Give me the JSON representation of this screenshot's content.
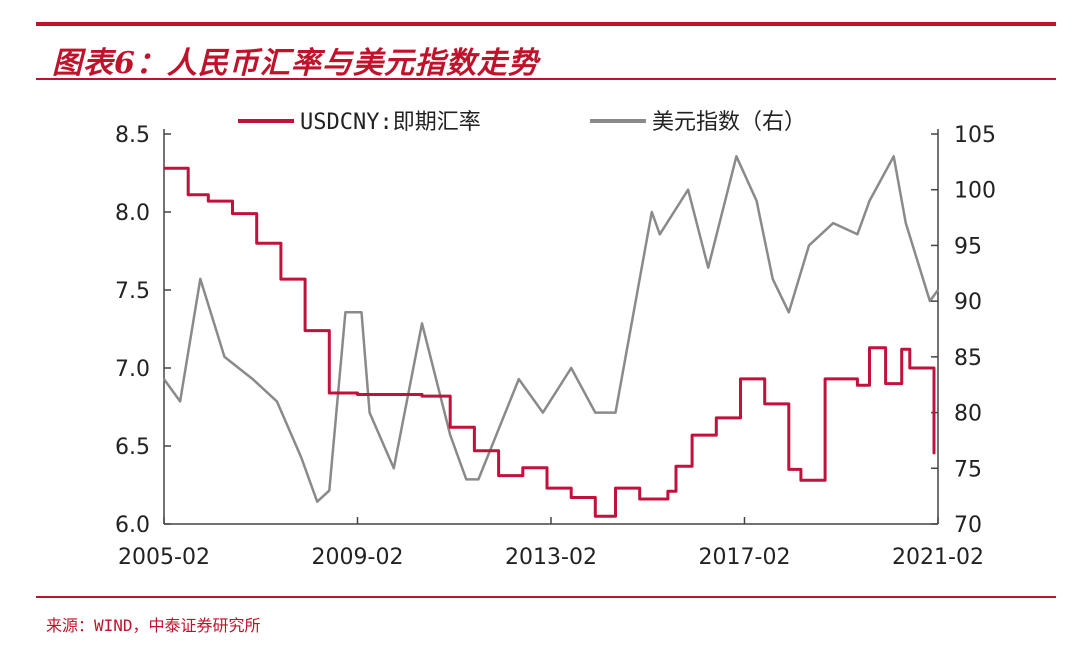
{
  "header": {
    "title": "图表6：人民币汇率与美元指数走势"
  },
  "footer": {
    "source": "来源：WIND，中泰证券研究所"
  },
  "colors": {
    "accent": "#c0122a",
    "usdcny": "#c0123c",
    "dxy": "#8a8a8a",
    "axis": "#444444"
  },
  "chart_data": {
    "type": "line",
    "title": "图表6：人民币汇率与美元指数走势",
    "legend_position": "top",
    "grid": false,
    "x_ticks": [
      "2005-02",
      "2009-02",
      "2013-02",
      "2017-02",
      "2021-02"
    ],
    "xlim": [
      "2005-02",
      "2021-02"
    ],
    "y_left": {
      "lim": [
        6.0,
        8.5
      ],
      "ticks": [
        "6.0",
        "6.5",
        "7.0",
        "7.5",
        "8.0",
        "8.5"
      ]
    },
    "y_right": {
      "lim": [
        70,
        105
      ],
      "ticks": [
        "70",
        "75",
        "80",
        "85",
        "90",
        "95",
        "100",
        "105"
      ]
    },
    "series": [
      {
        "name": "USDCNY:即期汇率",
        "axis": "left",
        "x": [
          "2005-02",
          "2005-07",
          "2005-08",
          "2006-01",
          "2006-07",
          "2007-01",
          "2007-07",
          "2008-01",
          "2008-07",
          "2009-02",
          "2010-06",
          "2011-01",
          "2011-07",
          "2012-01",
          "2012-07",
          "2013-01",
          "2013-07",
          "2014-01",
          "2014-06",
          "2014-12",
          "2015-07",
          "2015-09",
          "2016-01",
          "2016-07",
          "2017-01",
          "2017-07",
          "2018-01",
          "2018-04",
          "2018-10",
          "2019-06",
          "2019-09",
          "2020-01",
          "2020-05",
          "2020-07",
          "2021-01"
        ],
        "y": [
          8.28,
          8.28,
          8.11,
          8.07,
          7.99,
          7.8,
          7.57,
          7.24,
          6.84,
          6.83,
          6.82,
          6.62,
          6.47,
          6.31,
          6.36,
          6.23,
          6.17,
          6.05,
          6.23,
          6.16,
          6.21,
          6.37,
          6.57,
          6.68,
          6.93,
          6.77,
          6.35,
          6.28,
          6.93,
          6.89,
          7.13,
          6.9,
          7.12,
          7.0,
          6.45
        ]
      },
      {
        "name": "美元指数（右）",
        "axis": "right",
        "x": [
          "2005-02",
          "2005-06",
          "2005-11",
          "2006-05",
          "2006-12",
          "2007-06",
          "2007-12",
          "2008-04",
          "2008-07",
          "2008-11",
          "2009-03",
          "2009-05",
          "2009-11",
          "2010-06",
          "2011-01",
          "2011-05",
          "2011-08",
          "2012-06",
          "2012-12",
          "2013-07",
          "2014-01",
          "2014-06",
          "2015-03",
          "2015-05",
          "2015-12",
          "2016-05",
          "2016-12",
          "2017-05",
          "2017-09",
          "2018-01",
          "2018-06",
          "2018-12",
          "2019-06",
          "2019-09",
          "2020-03",
          "2020-06",
          "2020-12",
          "2021-02"
        ],
        "y": [
          83,
          81,
          92,
          85,
          83,
          81,
          76,
          72,
          73,
          89,
          89,
          80,
          75,
          88,
          78,
          74,
          74,
          83,
          80,
          84,
          80,
          80,
          98,
          96,
          100,
          93,
          103,
          99,
          92,
          89,
          95,
          97,
          96,
          99,
          103,
          97,
          90,
          91
        ]
      }
    ]
  }
}
